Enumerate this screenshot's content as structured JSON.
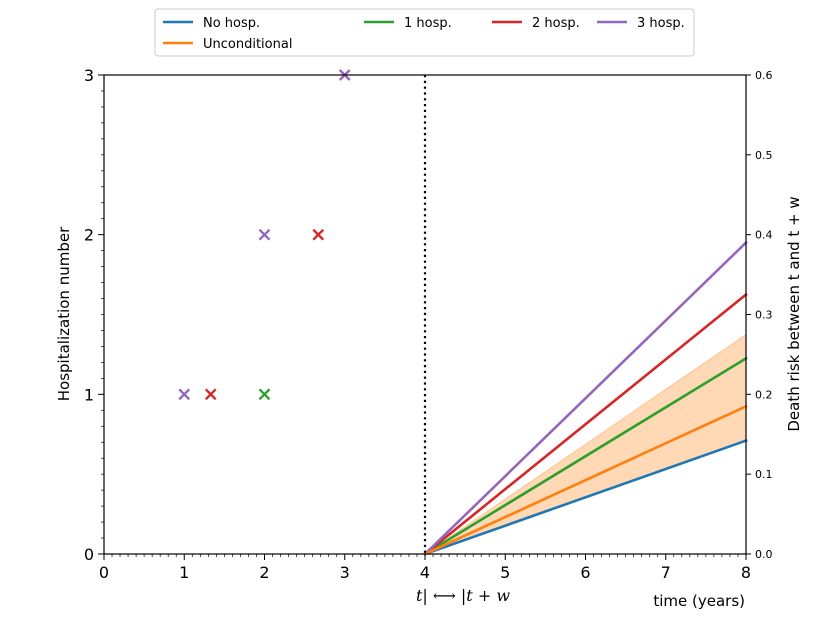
{
  "chart_data": {
    "type": "line",
    "legend": {
      "placement": "top-center",
      "entries": [
        {
          "label": "No hosp.",
          "color": "#1f77b4"
        },
        {
          "label": "1 hosp.",
          "color": "#2ca02c"
        },
        {
          "label": "2 hosp.",
          "color": "#d62728"
        },
        {
          "label": "3 hosp.",
          "color": "#9467bd"
        },
        {
          "label": "Unconditional",
          "color": "#ff7f0e"
        }
      ]
    },
    "xlabel": "time (years)",
    "xlabel_center": "t| ⟷ |t + w",
    "ylabel_left": "Hospitalization number",
    "ylabel_right": "Death risk between t and t + w",
    "xlim": [
      0,
      8
    ],
    "ylim_left": [
      0,
      3
    ],
    "ylim_right": [
      0,
      0.6
    ],
    "x_ticks": [
      "0",
      "1",
      "2",
      "3",
      "4",
      "5",
      "6",
      "7",
      "8"
    ],
    "y_left_ticks": [
      "0",
      "1",
      "2",
      "3"
    ],
    "y_right_ticks": [
      "0.0",
      "0.1",
      "0.2",
      "0.3",
      "0.4",
      "0.5",
      "0.6"
    ],
    "vline_x": 4,
    "hospitalizations": [
      {
        "series": "1 hosp.",
        "color": "#2ca02c",
        "points": [
          [
            2,
            1
          ]
        ]
      },
      {
        "series": "2 hosp.",
        "color": "#d62728",
        "points": [
          [
            1.33,
            1
          ],
          [
            2.67,
            2
          ]
        ]
      },
      {
        "series": "3 hosp.",
        "color": "#9467bd",
        "points": [
          [
            1,
            1
          ],
          [
            2,
            2
          ],
          [
            3,
            3
          ]
        ]
      }
    ],
    "risk_series": [
      {
        "name": "No hosp.",
        "color": "#1f77b4",
        "x": [
          4,
          8
        ],
        "y": [
          0.0,
          0.142
        ]
      },
      {
        "name": "1 hosp.",
        "color": "#2ca02c",
        "x": [
          4,
          8
        ],
        "y": [
          0.0,
          0.245
        ]
      },
      {
        "name": "2 hosp.",
        "color": "#d62728",
        "x": [
          4,
          8
        ],
        "y": [
          0.0,
          0.325
        ]
      },
      {
        "name": "3 hosp.",
        "color": "#9467bd",
        "x": [
          4,
          8
        ],
        "y": [
          0.0,
          0.39
        ]
      },
      {
        "name": "Unconditional",
        "color": "#ff7f0e",
        "x": [
          4,
          8
        ],
        "y": [
          0.0,
          0.185
        ]
      }
    ],
    "band": {
      "series": "Unconditional",
      "color": "#ff7f0e",
      "x": [
        4,
        8
      ],
      "lower": [
        0.0,
        0.142
      ],
      "upper": [
        0.0,
        0.275
      ]
    }
  }
}
